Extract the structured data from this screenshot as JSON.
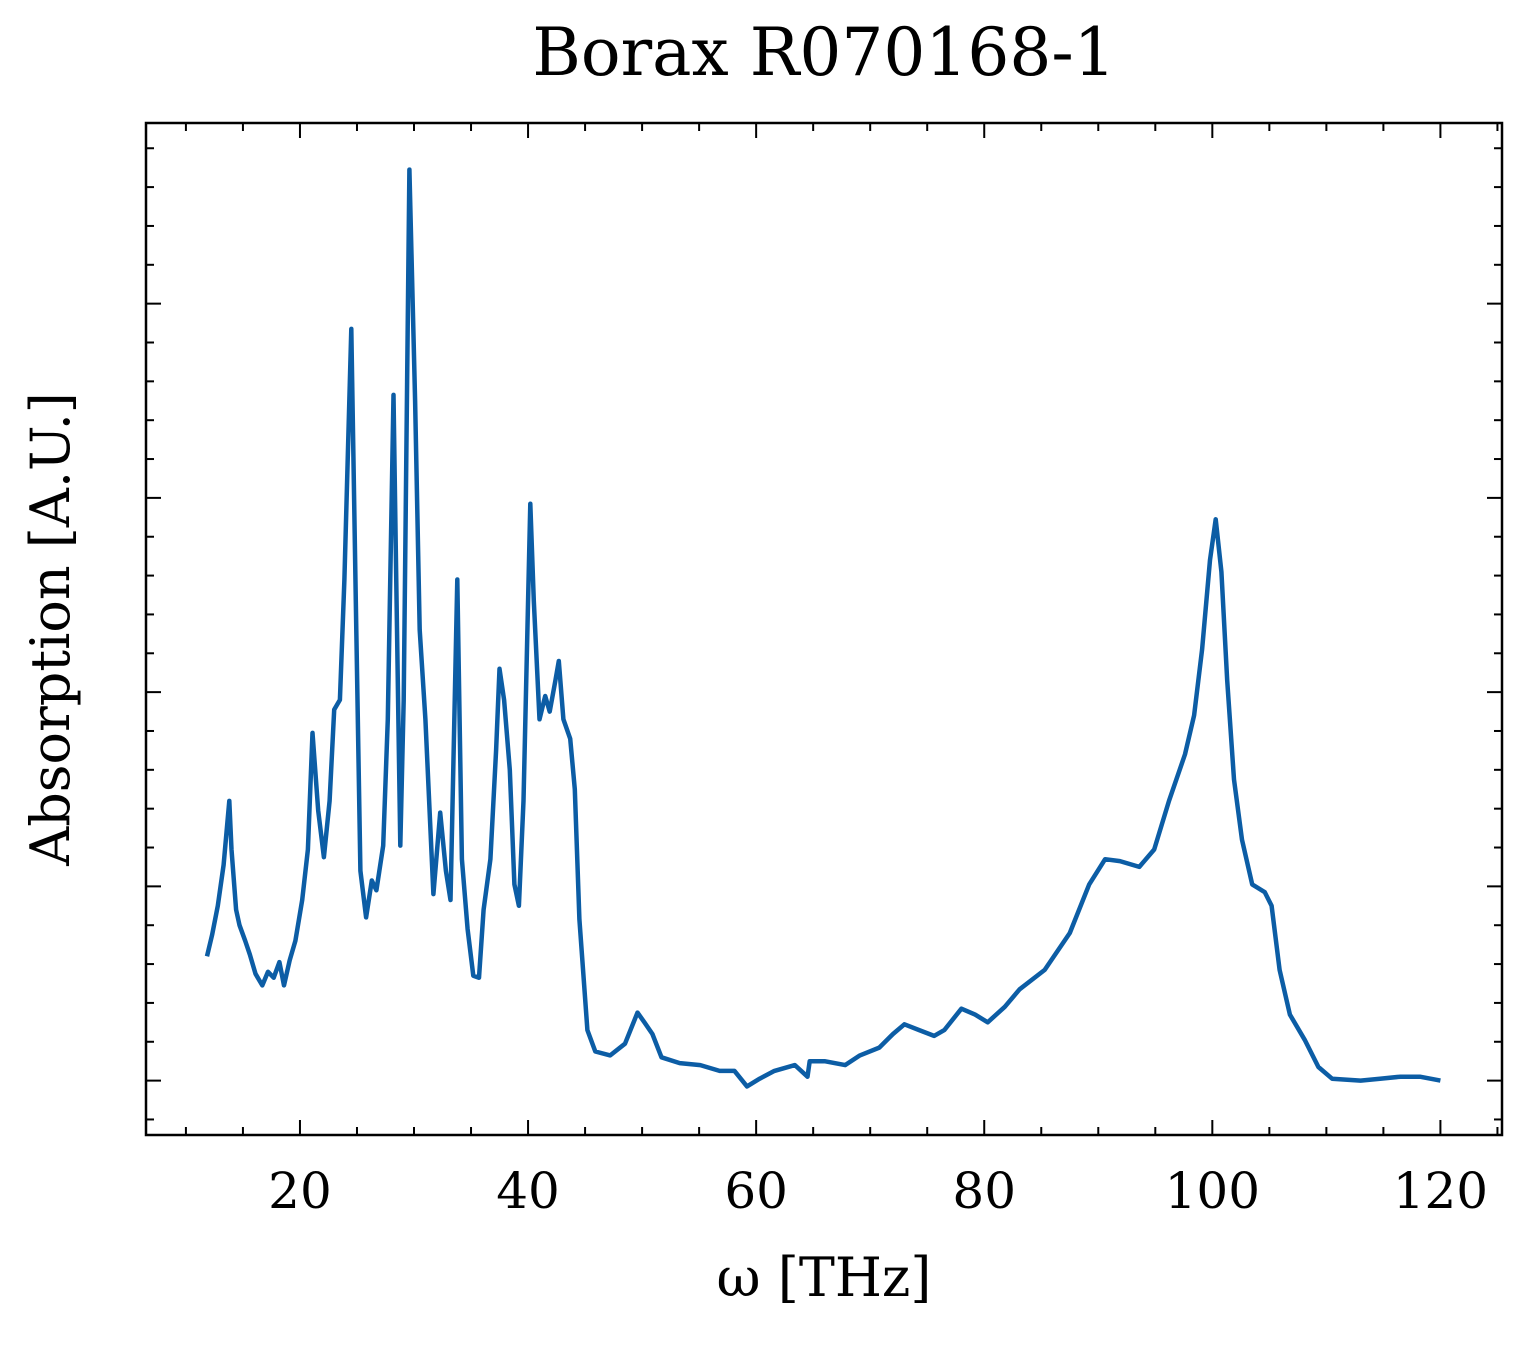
{
  "chart_data": {
    "type": "line",
    "title": "Borax R070168-1",
    "xlabel": "ω [THz]",
    "ylabel": "Absorption [A.U.]",
    "color": "#0c5da5",
    "x": [
      11.85,
      12.3,
      12.8,
      13.3,
      13.8,
      14.0,
      14.4,
      14.7,
      15.2,
      15.6,
      16.1,
      16.7,
      17.2,
      17.7,
      18.2,
      18.6,
      19.1,
      19.6,
      20.2,
      20.7,
      21.1,
      21.6,
      22.1,
      22.6,
      23.0,
      23.5,
      23.9,
      24.5,
      24.9,
      25.3,
      25.8,
      26.3,
      26.7,
      27.3,
      27.7,
      28.2,
      28.4,
      28.8,
      29.1,
      29.6,
      30.1,
      30.5,
      31.0,
      31.7,
      32.3,
      32.8,
      33.2,
      33.8,
      34.2,
      34.7,
      35.2,
      35.7,
      36.1,
      36.7,
      37.2,
      37.5,
      37.9,
      38.4,
      38.8,
      39.2,
      39.6,
      40.2,
      40.5,
      41.0,
      41.5,
      41.9,
      42.4,
      42.7,
      43.1,
      43.7,
      44.1,
      44.5,
      45.2,
      45.9,
      47.2,
      48.5,
      49.6,
      50.2,
      50.9,
      51.7,
      53.3,
      55.1,
      56.8,
      58.1,
      59.2,
      60.3,
      61.6,
      63.4,
      64.5,
      64.7,
      66.0,
      67.8,
      69.1,
      70.8,
      72.0,
      73.0,
      74.3,
      75.6,
      76.5,
      78.0,
      79.2,
      80.3,
      81.8,
      83.1,
      85.3,
      87.5,
      89.2,
      90.6,
      91.9,
      93.6,
      94.9,
      96.2,
      97.6,
      98.4,
      99.1,
      99.8,
      100.3,
      100.8,
      101.3,
      101.9,
      102.6,
      103.5,
      104.6,
      105.2,
      105.9,
      106.8,
      108.1,
      109.3,
      110.5,
      113.0,
      114.7,
      116.5,
      118.2,
      120.0
    ],
    "values": [
      0.64,
      0.75,
      0.9,
      1.11,
      1.44,
      1.19,
      0.88,
      0.8,
      0.72,
      0.65,
      0.55,
      0.49,
      0.56,
      0.53,
      0.61,
      0.49,
      0.62,
      0.72,
      0.93,
      1.19,
      1.79,
      1.39,
      1.15,
      1.44,
      1.91,
      1.96,
      2.58,
      3.87,
      2.47,
      1.08,
      0.84,
      1.03,
      0.98,
      1.21,
      1.86,
      3.53,
      2.73,
      1.21,
      1.96,
      4.69,
      3.5,
      2.32,
      1.86,
      0.96,
      1.38,
      1.08,
      0.93,
      2.58,
      1.14,
      0.78,
      0.54,
      0.53,
      0.88,
      1.14,
      1.7,
      2.12,
      1.96,
      1.6,
      1.01,
      0.9,
      1.44,
      2.97,
      2.47,
      1.86,
      1.98,
      1.9,
      2.06,
      2.16,
      1.86,
      1.76,
      1.5,
      0.83,
      0.26,
      0.15,
      0.13,
      0.19,
      0.35,
      0.3,
      0.24,
      0.12,
      0.09,
      0.08,
      0.05,
      0.05,
      -0.03,
      0.01,
      0.05,
      0.08,
      0.02,
      0.1,
      0.1,
      0.08,
      0.13,
      0.17,
      0.24,
      0.29,
      0.26,
      0.23,
      0.26,
      0.37,
      0.34,
      0.3,
      0.38,
      0.47,
      0.57,
      0.76,
      1.01,
      1.14,
      1.13,
      1.1,
      1.19,
      1.44,
      1.68,
      1.88,
      2.22,
      2.68,
      2.89,
      2.62,
      2.06,
      1.55,
      1.24,
      1.01,
      0.97,
      0.9,
      0.57,
      0.34,
      0.21,
      0.07,
      0.01,
      0.0,
      0.01,
      0.02,
      0.02,
      0.0
    ],
    "xlim": [
      6.5,
      125.4
    ],
    "xticks": [
      20,
      40,
      60,
      80,
      100,
      120
    ],
    "xminorticks": [
      10,
      15,
      25,
      30,
      35,
      45,
      50,
      55,
      65,
      70,
      75,
      85,
      90,
      95,
      105,
      110,
      115,
      125
    ],
    "ylim": [
      -0.28,
      4.93
    ],
    "yticks": [
      0,
      1,
      2,
      3,
      4
    ],
    "yminorticks": [
      -0.2,
      0.2,
      0.4,
      0.6,
      0.8,
      1.2,
      1.4,
      1.6,
      1.8,
      2.2,
      2.4,
      2.6,
      2.8,
      3.2,
      3.4,
      3.6,
      3.8,
      4.2,
      4.4,
      4.6,
      4.8
    ],
    "ytick_labels": false,
    "grid": false
  }
}
